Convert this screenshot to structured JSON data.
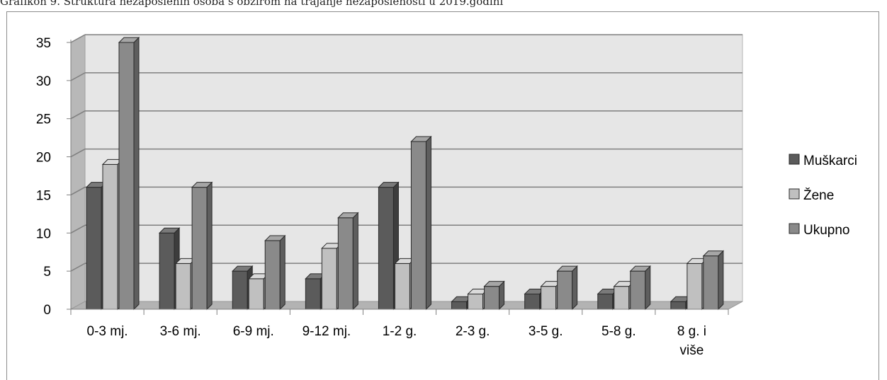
{
  "caption": "Grafikon 9. Struktura nezaposlenih osoba s obzirom na trajanje nezaposlenosti u 2019.godini",
  "chart_data": {
    "type": "bar",
    "categories": [
      [
        "0-3 mj."
      ],
      [
        "3-6 mj."
      ],
      [
        "6-9 mj."
      ],
      [
        "9-12 mj."
      ],
      [
        "1-2 g."
      ],
      [
        "2-3 g."
      ],
      [
        "3-5 g."
      ],
      [
        "5-8 g."
      ],
      [
        "8 g. i",
        "više"
      ]
    ],
    "series": [
      {
        "name": "Muškarci",
        "values": [
          16,
          10,
          5,
          4,
          16,
          1,
          2,
          2,
          1
        ],
        "color": "#5b5b5b",
        "side": "#3d3d3d",
        "top": "#7a7a7a"
      },
      {
        "name": "Žene",
        "values": [
          19,
          6,
          4,
          8,
          6,
          2,
          3,
          3,
          6
        ],
        "color": "#c0c0c0",
        "side": "#8f8f8f",
        "top": "#dadada"
      },
      {
        "name": "Ukupno",
        "values": [
          35,
          16,
          9,
          12,
          22,
          3,
          5,
          5,
          7
        ],
        "color": "#8a8a8a",
        "side": "#5e5e5e",
        "top": "#a6a6a6"
      }
    ],
    "y_ticks": [
      "0",
      "5",
      "10",
      "15",
      "20",
      "25",
      "30",
      "35"
    ],
    "ylim": [
      0,
      35
    ],
    "grid": true,
    "legend_position": "right",
    "style": "3d-clustered-column"
  }
}
